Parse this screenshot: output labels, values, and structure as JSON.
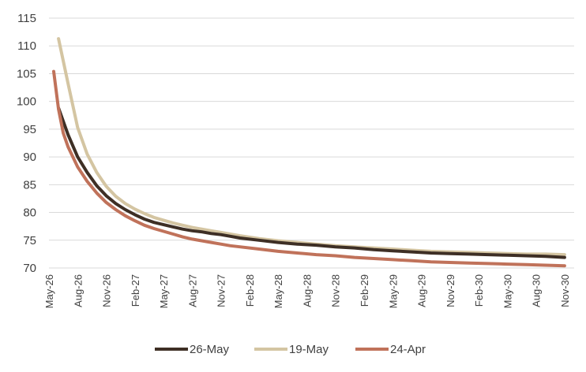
{
  "chart_data": {
    "type": "line",
    "title": "",
    "xlabel": "",
    "ylabel": "",
    "ylim": [
      70,
      115
    ],
    "yticks": [
      70,
      75,
      80,
      85,
      90,
      95,
      100,
      105,
      110,
      115
    ],
    "grid": "horizontal",
    "legend_position": "bottom",
    "x_tick_labels": [
      "May-26",
      "Aug-26",
      "Nov-26",
      "Feb-27",
      "May-27",
      "Aug-27",
      "Nov-27",
      "Feb-28",
      "May-28",
      "Aug-28",
      "Nov-28",
      "Feb-29",
      "May-29",
      "Aug-29",
      "Nov-29",
      "Feb-30",
      "May-30",
      "Aug-30",
      "Nov-30"
    ],
    "x_months_range": [
      0,
      55
    ],
    "series": [
      {
        "name": "26-May",
        "color": "#3e2f25",
        "x": [
          1,
          2,
          3,
          4,
          5,
          6,
          7,
          8,
          9,
          10,
          11,
          12,
          13,
          14,
          15,
          16,
          17,
          18,
          19,
          20,
          22,
          24,
          26,
          28,
          30,
          32,
          34,
          36,
          38,
          40,
          42,
          44,
          46,
          48,
          50,
          52,
          54
        ],
        "y": [
          98.8,
          94.0,
          90.0,
          87.2,
          84.8,
          83.0,
          81.6,
          80.5,
          79.6,
          78.8,
          78.2,
          77.8,
          77.4,
          77.0,
          76.7,
          76.5,
          76.2,
          76.0,
          75.7,
          75.4,
          75.0,
          74.6,
          74.3,
          74.1,
          73.8,
          73.6,
          73.3,
          73.1,
          72.9,
          72.7,
          72.6,
          72.5,
          72.4,
          72.3,
          72.2,
          72.1,
          71.9
        ]
      },
      {
        "name": "19-May",
        "color": "#d4c5a2",
        "x": [
          1,
          2,
          3,
          4,
          5,
          6,
          7,
          8,
          9,
          10,
          11,
          12,
          13,
          14,
          15,
          16,
          17,
          18,
          19,
          20,
          22,
          24,
          26,
          28,
          30,
          32,
          34,
          36,
          38,
          40,
          42,
          44,
          46,
          48,
          50,
          52,
          54
        ],
        "y": [
          111.3,
          103.2,
          95.3,
          90.5,
          87.2,
          84.7,
          82.9,
          81.6,
          80.6,
          79.8,
          79.1,
          78.6,
          78.1,
          77.7,
          77.3,
          77.0,
          76.7,
          76.4,
          76.1,
          75.8,
          75.3,
          74.9,
          74.6,
          74.3,
          74.0,
          73.8,
          73.6,
          73.4,
          73.2,
          73.0,
          72.9,
          72.8,
          72.7,
          72.6,
          72.5,
          72.5,
          72.4
        ]
      },
      {
        "name": "24-Apr",
        "color": "#c0725a",
        "x": [
          0.5,
          1,
          1.5,
          2,
          3,
          4,
          5,
          6,
          7,
          8,
          9,
          10,
          11,
          12,
          13,
          14,
          15,
          16,
          17,
          18,
          19,
          20,
          22,
          24,
          26,
          28,
          30,
          32,
          34,
          36,
          38,
          40,
          42,
          44,
          46,
          48,
          50,
          52,
          54
        ],
        "y": [
          105.4,
          98.6,
          94.3,
          91.8,
          88.2,
          85.6,
          83.5,
          81.8,
          80.5,
          79.4,
          78.5,
          77.7,
          77.1,
          76.6,
          76.1,
          75.6,
          75.2,
          74.9,
          74.6,
          74.3,
          74.0,
          73.8,
          73.4,
          73.0,
          72.7,
          72.4,
          72.2,
          71.9,
          71.7,
          71.5,
          71.3,
          71.1,
          71.0,
          70.9,
          70.8,
          70.7,
          70.6,
          70.5,
          70.4
        ]
      }
    ]
  }
}
